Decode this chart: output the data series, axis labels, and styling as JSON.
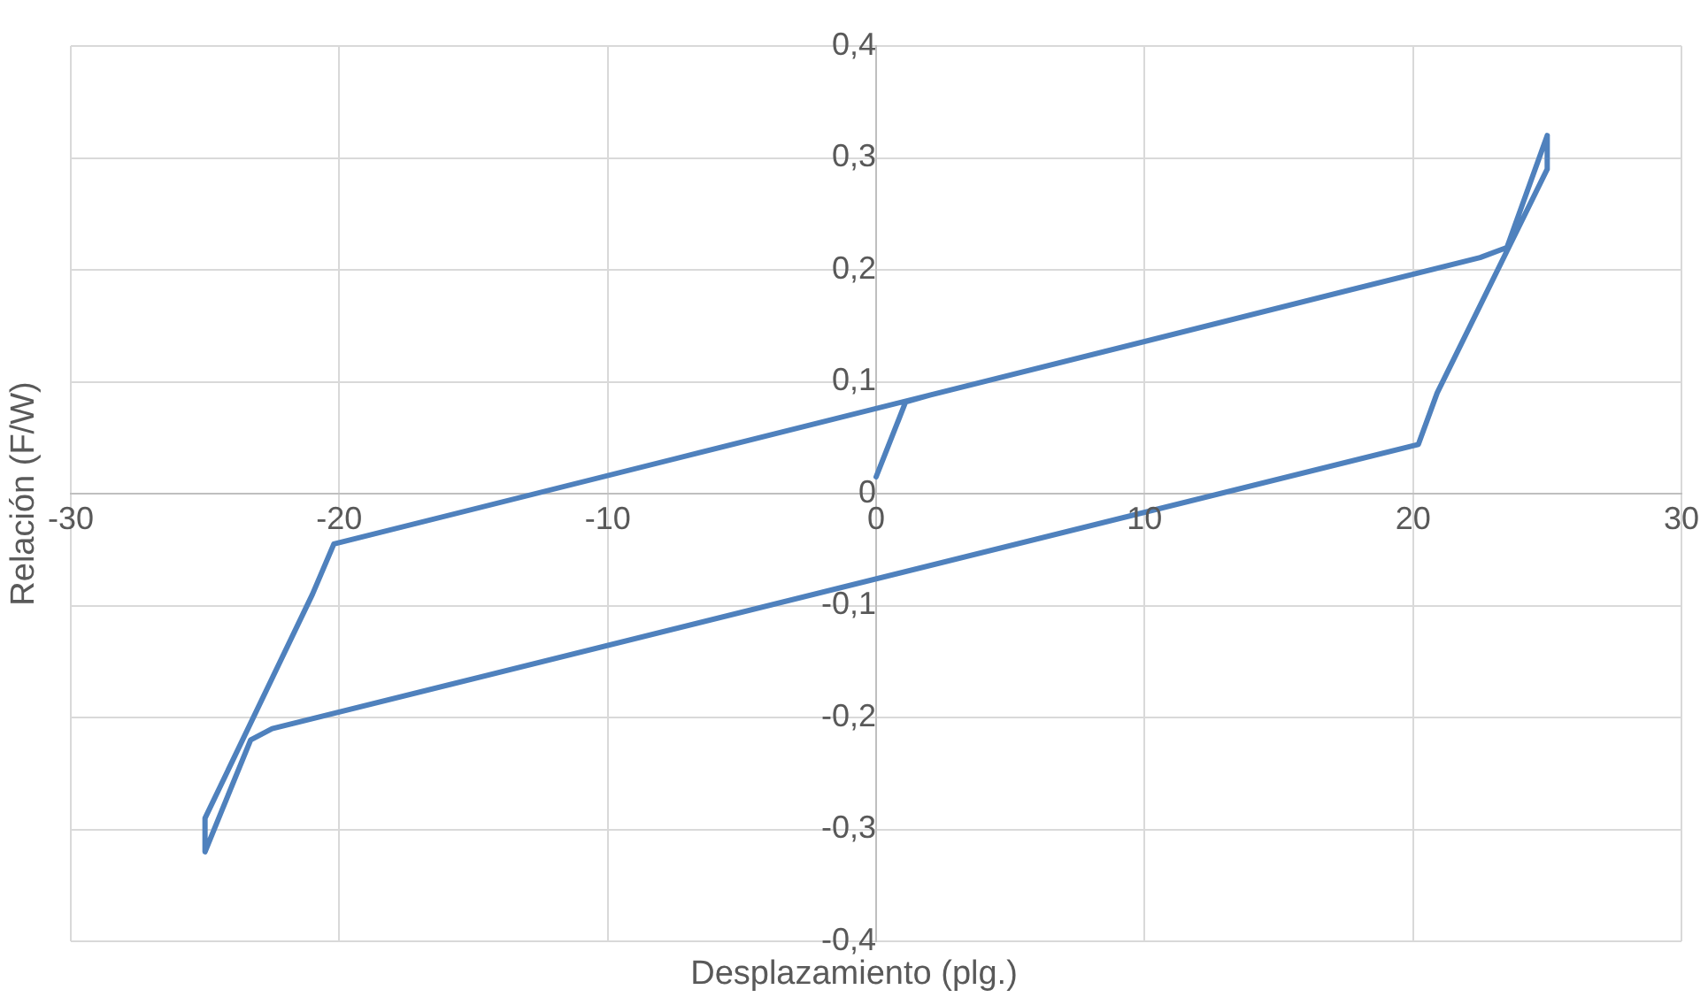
{
  "chart_data": {
    "type": "line",
    "xlabel": "Desplazamiento (plg.)",
    "ylabel": "Relación (F/W)",
    "xlim": [
      -30,
      30
    ],
    "xticks": [
      -30,
      -20,
      -10,
      0,
      10,
      20,
      30
    ],
    "ylim": [
      -0.4,
      0.4
    ],
    "yticks": [
      {
        "value": -0.4,
        "label": "-0,4"
      },
      {
        "value": -0.3,
        "label": "-0,3"
      },
      {
        "value": -0.2,
        "label": "-0,2"
      },
      {
        "value": -0.1,
        "label": "-0,1"
      },
      {
        "value": 0,
        "label": "0"
      },
      {
        "value": 0.1,
        "label": "0,1"
      },
      {
        "value": 0.2,
        "label": "0,2"
      },
      {
        "value": 0.3,
        "label": "0,3"
      },
      {
        "value": 0.4,
        "label": "0,4"
      }
    ],
    "grid": true,
    "legend": false,
    "marker": "none",
    "line_style": "solid",
    "series": [
      {
        "color": "#4f81bd",
        "x": [
          0,
          1.1,
          2,
          22.5,
          23.5,
          25,
          25,
          20.9,
          20.2,
          -22.5,
          -23.3,
          -25,
          -25,
          -21,
          -20.2,
          22.5,
          23.5,
          25
        ],
        "values": [
          0.015,
          0.082,
          0.088,
          0.211,
          0.22,
          0.32,
          0.29,
          0.09,
          0.044,
          -0.21,
          -0.22,
          -0.32,
          -0.29,
          -0.09,
          -0.045,
          0.211,
          0.22,
          0.32
        ]
      }
    ]
  }
}
